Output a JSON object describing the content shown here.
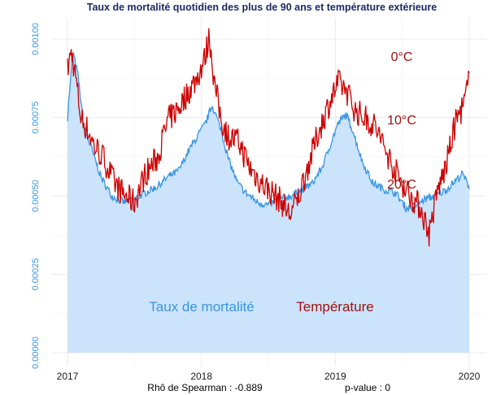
{
  "chart_data": {
    "type": "line",
    "title": "Taux de mortalité quotidien des plus de 90 ans et température extérieure",
    "xlabel": "",
    "ylabel": "",
    "xlim": [
      2017.0,
      2020.0
    ],
    "ylim": [
      0,
      0.00108
    ],
    "x_ticks": [
      "2017",
      "2018",
      "2019",
      "2020"
    ],
    "x_tick_values": [
      2017,
      2018,
      2019,
      2020
    ],
    "y_ticks": [
      "0.00000",
      "0.00025",
      "0.00050",
      "0.00075",
      "0.00100"
    ],
    "y_tick_values": [
      0,
      0.00025,
      0.0005,
      0.00075,
      0.001
    ],
    "colors": {
      "mortality_line": "#3a95e3",
      "mortality_fill": "#cbe4fb",
      "temperature_line": "#cc0000",
      "temperature_text": "#a01010",
      "title": "#1a2a5e",
      "tick_y": "#3a95e3",
      "grid": "#ebebeb"
    },
    "series": [
      {
        "name": "Taux de mortalité",
        "style": "area",
        "x": [
          2017.0,
          2017.04,
          2017.08,
          2017.12,
          2017.18,
          2017.25,
          2017.33,
          2017.42,
          2017.5,
          2017.58,
          2017.67,
          2017.75,
          2017.83,
          2017.9,
          2017.97,
          2018.03,
          2018.08,
          2018.14,
          2018.2,
          2018.27,
          2018.33,
          2018.42,
          2018.5,
          2018.58,
          2018.67,
          2018.75,
          2018.83,
          2018.9,
          2018.96,
          2019.02,
          2019.08,
          2019.13,
          2019.2,
          2019.28,
          2019.37,
          2019.45,
          2019.53,
          2019.6,
          2019.67,
          2019.75,
          2019.83,
          2019.9,
          2019.95,
          2020.0
        ],
        "values": [
          0.00075,
          0.00096,
          0.00088,
          0.00072,
          0.00065,
          0.00056,
          0.0005,
          0.00048,
          0.00049,
          0.00051,
          0.00053,
          0.00056,
          0.00058,
          0.00064,
          0.00069,
          0.00073,
          0.00079,
          0.00072,
          0.00062,
          0.00054,
          0.00051,
          0.00048,
          0.00047,
          0.00049,
          0.0005,
          0.00052,
          0.00054,
          0.00059,
          0.00066,
          0.00073,
          0.00076,
          0.00071,
          0.00061,
          0.00054,
          0.00052,
          0.00051,
          0.00046,
          0.00047,
          0.00049,
          0.0005,
          0.00052,
          0.00055,
          0.00057,
          0.00053
        ]
      },
      {
        "name": "Température",
        "style": "line",
        "x": [
          2017.0,
          2017.03,
          2017.06,
          2017.1,
          2017.15,
          2017.2,
          2017.27,
          2017.35,
          2017.43,
          2017.5,
          2017.58,
          2017.67,
          2017.75,
          2017.83,
          2017.9,
          2017.96,
          2018.02,
          2018.06,
          2018.1,
          2018.15,
          2018.2,
          2018.28,
          2018.36,
          2018.45,
          2018.53,
          2018.6,
          2018.66,
          2018.72,
          2018.8,
          2018.88,
          2018.95,
          2019.02,
          2019.08,
          2019.15,
          2019.22,
          2019.3,
          2019.38,
          2019.46,
          2019.53,
          2019.58,
          2019.64,
          2019.7,
          2019.76,
          2019.83,
          2019.9,
          2019.96,
          2020.0
        ],
        "values": [
          0.0009,
          0.00096,
          0.00088,
          0.00075,
          0.00071,
          0.00066,
          0.00062,
          0.00054,
          0.0005,
          0.00048,
          0.00057,
          0.00062,
          0.00074,
          0.00078,
          0.00083,
          0.00087,
          0.00093,
          0.00101,
          0.00085,
          0.00074,
          0.00069,
          0.00067,
          0.00059,
          0.00054,
          0.00051,
          0.00048,
          0.00044,
          0.00049,
          0.0006,
          0.00071,
          0.00079,
          0.00086,
          0.00084,
          0.00077,
          0.00075,
          0.00072,
          0.00064,
          0.00057,
          0.00052,
          0.00049,
          0.00046,
          0.00038,
          0.00051,
          0.0006,
          0.00074,
          0.00079,
          0.00087
        ]
      }
    ],
    "temperature_axis_labels": [
      "0°C",
      "10°C",
      "20°C"
    ],
    "legend": [
      "Taux de mortalité",
      "Température"
    ],
    "bottom_left": "Rhô de Spearman : -0.889",
    "bottom_right": "p-value : 0"
  }
}
